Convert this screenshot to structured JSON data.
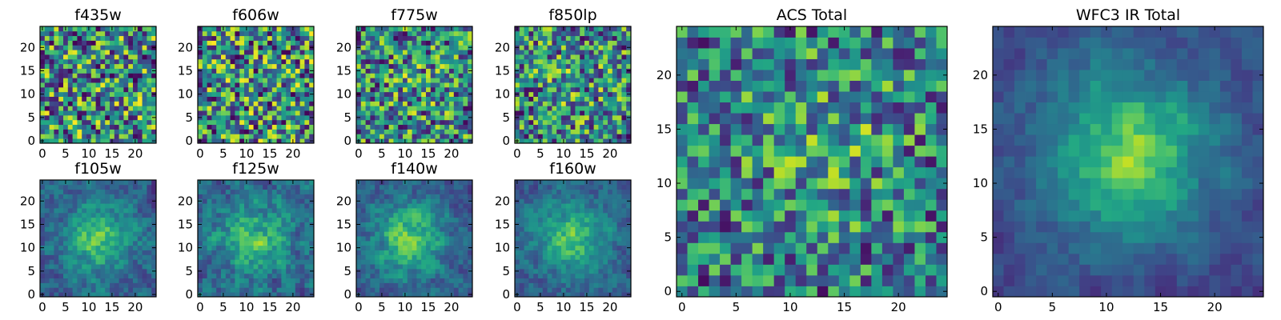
{
  "figure": {
    "colormap": "viridis",
    "axis_ticks_small": [
      0,
      5,
      10,
      15,
      20
    ],
    "axis_ticks_large_x": [
      0,
      5,
      10,
      15,
      20
    ],
    "axis_ticks_large_y": [
      0,
      5,
      10,
      15,
      20
    ]
  },
  "chart_data": [
    {
      "type": "heatmap",
      "title": "f435w",
      "grid_size": 25,
      "xlim": [
        0,
        24
      ],
      "ylim": [
        0,
        24
      ],
      "grid": false,
      "pattern": "noise",
      "peak": [
        12,
        12
      ],
      "contrast": 0.0,
      "seed": 11
    },
    {
      "type": "heatmap",
      "title": "f606w",
      "grid_size": 25,
      "xlim": [
        0,
        24
      ],
      "ylim": [
        0,
        24
      ],
      "grid": false,
      "pattern": "noise",
      "peak": [
        12,
        12
      ],
      "contrast": 0.0,
      "seed": 23
    },
    {
      "type": "heatmap",
      "title": "f775w",
      "grid_size": 25,
      "xlim": [
        0,
        24
      ],
      "ylim": [
        0,
        24
      ],
      "grid": false,
      "pattern": "noise",
      "peak": [
        12,
        12
      ],
      "contrast": 0.1,
      "seed": 37
    },
    {
      "type": "heatmap",
      "title": "f850lp",
      "grid_size": 25,
      "xlim": [
        0,
        24
      ],
      "ylim": [
        0,
        24
      ],
      "grid": false,
      "pattern": "noise",
      "peak": [
        12,
        12
      ],
      "contrast": 0.1,
      "seed": 41
    },
    {
      "type": "heatmap",
      "title": "f105w",
      "grid_size": 25,
      "xlim": [
        0,
        24
      ],
      "ylim": [
        0,
        24
      ],
      "grid": false,
      "pattern": "blob",
      "peak": [
        12,
        12
      ],
      "contrast": 0.55,
      "seed": 53
    },
    {
      "type": "heatmap",
      "title": "f125w",
      "grid_size": 25,
      "xlim": [
        0,
        24
      ],
      "ylim": [
        0,
        24
      ],
      "grid": false,
      "pattern": "blob",
      "peak": [
        12,
        12
      ],
      "contrast": 0.45,
      "seed": 67
    },
    {
      "type": "heatmap",
      "title": "f140w",
      "grid_size": 25,
      "xlim": [
        0,
        24
      ],
      "ylim": [
        0,
        24
      ],
      "grid": false,
      "pattern": "blob",
      "peak": [
        11,
        12
      ],
      "contrast": 0.55,
      "seed": 71
    },
    {
      "type": "heatmap",
      "title": "f160w",
      "grid_size": 25,
      "xlim": [
        0,
        24
      ],
      "ylim": [
        0,
        24
      ],
      "grid": false,
      "pattern": "blob",
      "peak": [
        12,
        12
      ],
      "contrast": 0.6,
      "seed": 83
    },
    {
      "type": "heatmap",
      "title": "ACS Total",
      "grid_size": 25,
      "xlim": [
        0,
        24
      ],
      "ylim": [
        0,
        24
      ],
      "grid": false,
      "pattern": "noise",
      "peak": [
        13,
        14
      ],
      "contrast": 0.25,
      "seed": 97
    },
    {
      "type": "heatmap",
      "title": "WFC3 IR Total",
      "grid_size": 25,
      "xlim": [
        0,
        24
      ],
      "ylim": [
        0,
        24
      ],
      "grid": false,
      "pattern": "blob",
      "peak": [
        12,
        13
      ],
      "contrast": 0.75,
      "seed": 101
    }
  ]
}
